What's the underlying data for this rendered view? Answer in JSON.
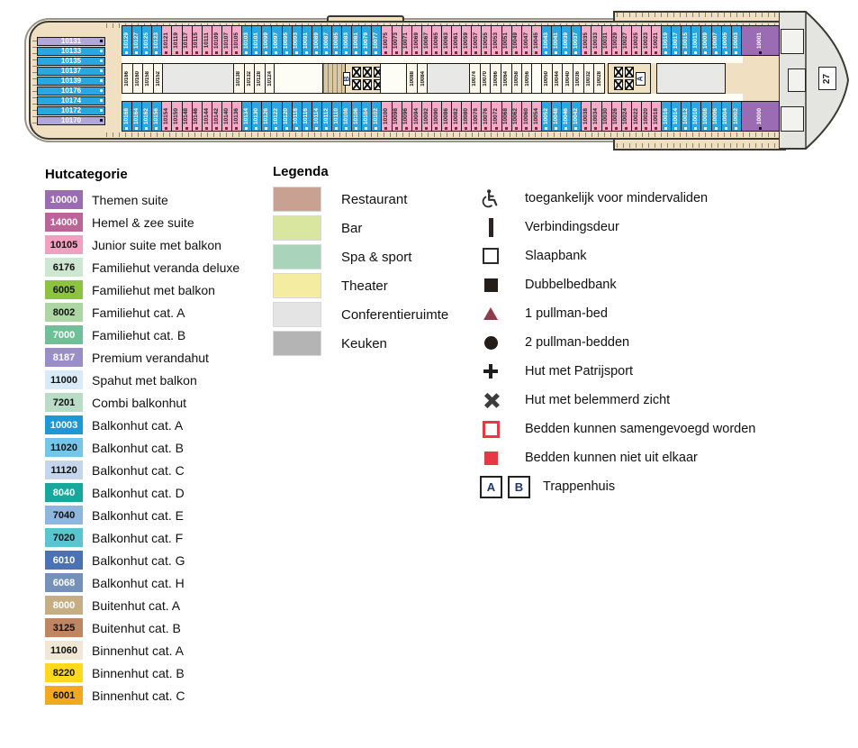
{
  "deck_plan": {
    "bow_label": "27",
    "stairwells": [
      "A",
      "B"
    ],
    "left_column": [
      {
        "num": "10131",
        "color": "lavender"
      },
      {
        "num": "10133",
        "color": "blue"
      },
      {
        "num": "10135",
        "color": "blue"
      },
      {
        "num": "10137",
        "color": "blue"
      },
      {
        "num": "10139",
        "color": "blue"
      },
      {
        "num": "10176",
        "color": "blue"
      },
      {
        "num": "10174",
        "color": "blue"
      },
      {
        "num": "10172",
        "color": "blue"
      },
      {
        "num": "10170",
        "color": "lavender"
      }
    ],
    "top_row": [
      {
        "color": "blue",
        "nums": [
          "10129",
          "10127",
          "10125",
          "10123"
        ]
      },
      {
        "color": "pink",
        "nums": [
          "10121",
          "10119",
          "10117",
          "10115",
          "10111",
          "10109",
          "10107",
          "10105"
        ]
      },
      {
        "color": "blue",
        "nums": [
          "10103",
          "10101",
          "10099",
          "10097",
          "10095",
          "10093",
          "10091",
          "10089",
          "10087",
          "10085",
          "10083",
          "10081",
          "10079",
          "10077"
        ]
      },
      {
        "color": "pink",
        "nums": [
          "10075",
          "10073",
          "10071",
          "10069",
          "10067",
          "10065",
          "10063",
          "10061",
          "10059",
          "10057",
          "10055",
          "10053",
          "10051",
          "10049",
          "10047",
          "10045"
        ]
      },
      {
        "color": "blue",
        "nums": [
          "10043",
          "10041",
          "10039",
          "10037"
        ]
      },
      {
        "color": "pink",
        "nums": [
          "10035",
          "10033",
          "10031",
          "10029",
          "10027",
          "10025",
          "10023",
          "10021"
        ]
      },
      {
        "color": "blue",
        "nums": [
          "10019",
          "10017",
          "10015",
          "10011",
          "10009",
          "10007",
          "10005",
          "10003"
        ]
      }
    ],
    "suite_top": {
      "num": "10001",
      "color": "purple"
    },
    "suite_bottom": {
      "num": "10000",
      "color": "purple"
    },
    "bottom_row": [
      {
        "color": "blue",
        "nums": [
          "10168",
          "10164",
          "10162",
          "10156"
        ]
      },
      {
        "color": "pink",
        "nums": [
          "10154",
          "10150",
          "10148",
          "10146",
          "10144",
          "10142",
          "10140",
          "10136"
        ]
      },
      {
        "color": "blue",
        "nums": [
          "10134",
          "10130",
          "10126",
          "10122",
          "10120",
          "10118",
          "10116",
          "10114",
          "10112",
          "10110",
          "10108",
          "10106",
          "10104",
          "10102"
        ]
      },
      {
        "color": "pink",
        "nums": [
          "10100",
          "10098",
          "10096",
          "10094",
          "10092",
          "10090",
          "10086",
          "10082",
          "10080",
          "10078",
          "10076",
          "10072",
          "10068",
          "10062",
          "10060",
          "10054"
        ]
      },
      {
        "color": "blue",
        "nums": [
          "10052",
          "10048",
          "10046",
          "10042"
        ]
      },
      {
        "color": "pink",
        "nums": [
          "10038",
          "10034",
          "10030",
          "10026",
          "10024",
          "10022",
          "10020",
          "10018"
        ]
      },
      {
        "color": "blue",
        "nums": [
          "10016",
          "10014",
          "10012",
          "10010",
          "10008",
          "10006",
          "10004",
          "10002"
        ]
      }
    ],
    "middle_segments": [
      {
        "type": "cabins",
        "cabins": [
          "10166",
          "10160",
          "10158",
          "10152"
        ]
      },
      {
        "type": "room-gray"
      },
      {
        "type": "cabins",
        "cabins": [
          "10138",
          "10132",
          "10128",
          "10124"
        ]
      },
      {
        "type": "corridor"
      },
      {
        "type": "stairs"
      },
      {
        "type": "lifts",
        "label": "B",
        "cols": 3
      },
      {
        "type": "corridor"
      },
      {
        "type": "cabins",
        "cabins": [
          "10088",
          "10084"
        ]
      },
      {
        "type": "room-gray"
      },
      {
        "type": "cabins",
        "cabins": [
          "10074",
          "10070",
          "10066",
          "10064",
          "10058",
          "10056"
        ]
      },
      {
        "type": "corridor"
      },
      {
        "type": "cabins",
        "cabins": [
          "10050",
          "10044",
          "10040",
          "10036",
          "10032",
          "10028"
        ]
      },
      {
        "type": "gap"
      },
      {
        "type": "lifts",
        "label": "A",
        "cols": 2
      },
      {
        "type": "gap"
      },
      {
        "type": "room-gray"
      }
    ],
    "colors": {
      "cabin_blue": "#2aa7e0",
      "cabin_pink": "#f4abc8",
      "cabin_purple": "#9b6bb4",
      "cabin_lavender": "#b2a7d9",
      "cabin_inner": "#fbf7ea",
      "hull": "#f0dfc0",
      "room_gray": "#e8e8e6"
    }
  },
  "categories": {
    "title": "Hutcategorie",
    "items": [
      {
        "code": "10000",
        "label": "Themen suite",
        "bg": "#9b6bb4",
        "text": "#ffffff"
      },
      {
        "code": "14000",
        "label": "Hemel & zee suite",
        "bg": "#bc6398",
        "text": "#ffffff"
      },
      {
        "code": "10105",
        "label": "Junior suite met balkon",
        "bg": "#f2a0c0",
        "text": "#111111"
      },
      {
        "code": "6176",
        "label": "Familiehut veranda deluxe",
        "bg": "#cde7d2",
        "text": "#111111"
      },
      {
        "code": "6005",
        "label": "Familiehut met balkon",
        "bg": "#8cc441",
        "text": "#111111"
      },
      {
        "code": "8002",
        "label": "Familiehut cat. A",
        "bg": "#aed6a4",
        "text": "#111111"
      },
      {
        "code": "7000",
        "label": "Familiehut cat. B",
        "bg": "#6fc096",
        "text": "#ffffff"
      },
      {
        "code": "8187",
        "label": "Premium verandahut",
        "bg": "#9a8dc8",
        "text": "#ffffff"
      },
      {
        "code": "11000",
        "label": "Spahut met balkon",
        "bg": "#d9ebf8",
        "text": "#111111"
      },
      {
        "code": "7201",
        "label": "Combi balkonhut",
        "bg": "#b9dcc6",
        "text": "#111111"
      },
      {
        "code": "10003",
        "label": "Balkonhut cat. A",
        "bg": "#1d97d5",
        "text": "#ffffff"
      },
      {
        "code": "11020",
        "label": "Balkonhut cat. B",
        "bg": "#74c6e9",
        "text": "#111111"
      },
      {
        "code": "11120",
        "label": "Balkonhut cat. C",
        "bg": "#c5d5ec",
        "text": "#111111"
      },
      {
        "code": "8040",
        "label": "Balkonhut cat. D",
        "bg": "#17a89c",
        "text": "#ffffff"
      },
      {
        "code": "7040",
        "label": "Balkonhut cat. E",
        "bg": "#8fb6dd",
        "text": "#111111"
      },
      {
        "code": "7020",
        "label": "Balkonhut cat. F",
        "bg": "#58c5d0",
        "text": "#111111"
      },
      {
        "code": "6010",
        "label": "Balkonhut cat. G",
        "bg": "#4a72b4",
        "text": "#ffffff"
      },
      {
        "code": "6068",
        "label": "Balkonhut cat. H",
        "bg": "#7691b9",
        "text": "#ffffff"
      },
      {
        "code": "8000",
        "label": "Buitenhut cat. A",
        "bg": "#c5ae83",
        "text": "#ffffff"
      },
      {
        "code": "3125",
        "label": "Buitenhut cat. B",
        "bg": "#c08561",
        "text": "#111111"
      },
      {
        "code": "11060",
        "label": "Binnenhut cat. A",
        "bg": "#f0e8d4",
        "text": "#111111"
      },
      {
        "code": "8220",
        "label": "Binnenhut cat. B",
        "bg": "#ffd91e",
        "text": "#111111"
      },
      {
        "code": "6001",
        "label": "Binnenhut cat. C",
        "bg": "#f2a920",
        "text": "#111111"
      }
    ]
  },
  "legend": {
    "title": "Legenda",
    "items": [
      {
        "label": "Restaurant",
        "color": "#c9a193"
      },
      {
        "label": "Bar",
        "color": "#d9e6a0"
      },
      {
        "label": "Spa & sport",
        "color": "#a9d4bb"
      },
      {
        "label": "Theater",
        "color": "#f3eca1"
      },
      {
        "label": "Conferentieruimte",
        "color": "#e4e4e4"
      },
      {
        "label": "Keuken",
        "color": "#b4b4b4"
      }
    ]
  },
  "symbols": {
    "items": [
      {
        "icon": "wheelchair-icon",
        "label": "toegankelijk voor mindervaliden"
      },
      {
        "icon": "connecting-door-icon",
        "label": "Verbindingsdeur"
      },
      {
        "icon": "sofa-bed-icon",
        "label": "Slaapbank"
      },
      {
        "icon": "double-sofa-bed-icon",
        "label": "Dubbelbedbank"
      },
      {
        "icon": "one-pullman-bed-icon",
        "label": "1 pullman-bed"
      },
      {
        "icon": "two-pullman-beds-icon",
        "label": "2 pullman-bedden"
      },
      {
        "icon": "porthole-icon",
        "label": "Hut met Patrijsport"
      },
      {
        "icon": "obstructed-view-icon",
        "label": "Hut met belemmerd zicht"
      },
      {
        "icon": "beds-joinable-icon",
        "label": "Bedden kunnen samengevoegd worden"
      },
      {
        "icon": "beds-fixed-icon",
        "label": "Bedden kunnen niet uit elkaar"
      }
    ],
    "stairwell": {
      "labels": [
        "A",
        "B"
      ],
      "label": "Trappenhuis"
    }
  }
}
